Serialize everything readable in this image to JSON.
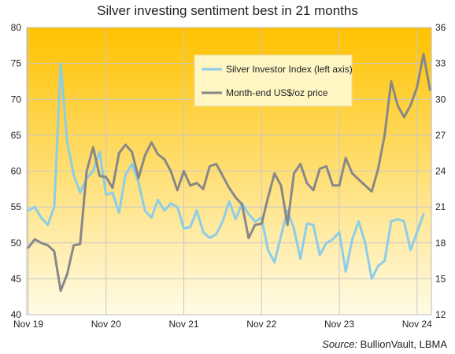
{
  "chart_data": {
    "type": "line",
    "title": "Silver investing sentiment best in 21 months",
    "source_label": "Source:",
    "source_text": "BullionVault, LBMA",
    "x_tick_labels": [
      "Nov 19",
      "Nov 20",
      "Nov 21",
      "Nov 22",
      "Nov 23",
      "Nov 24"
    ],
    "y_left": {
      "ticks": [
        40,
        45,
        50,
        55,
        60,
        65,
        70,
        75,
        80
      ],
      "lim": [
        40,
        80
      ]
    },
    "y_right": {
      "ticks": [
        12,
        15,
        18,
        21,
        24,
        27,
        30,
        33,
        36
      ],
      "lim": [
        12,
        36
      ]
    },
    "grid": true,
    "legend_position": "top-right",
    "background_gradient": {
      "top": "#ffc200",
      "bottom": "#fffbe6"
    },
    "series": [
      {
        "name": "Silver Investor Index (left axis)",
        "axis": "left",
        "color": "#8ccde8",
        "values": [
          54.5,
          55,
          53.5,
          52.5,
          55,
          75,
          64,
          59.5,
          57,
          59,
          60,
          62.7,
          56.7,
          57,
          54.2,
          59.5,
          61,
          58.5,
          54.5,
          53.5,
          56,
          54.5,
          55.5,
          55,
          52,
          52.2,
          54.5,
          51.5,
          50.7,
          51.2,
          53,
          55.8,
          53.3,
          55.5,
          54,
          53,
          53.5,
          49,
          47.3,
          51,
          54.5,
          52,
          47.8,
          52.7,
          52.5,
          48.3,
          50,
          50.5,
          51.5,
          46,
          50.5,
          53,
          50,
          45,
          46.8,
          47.5,
          53,
          53.3,
          53,
          49,
          51.5,
          54
        ]
      },
      {
        "name": "Month-end US$/oz price",
        "axis": "right",
        "color": "#888888",
        "values": [
          17.6,
          18.3,
          18.0,
          17.8,
          17.3,
          14.0,
          15.4,
          17.8,
          17.9,
          24.0,
          26.0,
          23.6,
          23.5,
          22.6,
          25.5,
          26.2,
          25.6,
          23.4,
          25.3,
          26.4,
          25.4,
          25.0,
          24.0,
          22.4,
          24.0,
          22.8,
          23.0,
          22.5,
          24.4,
          24.6,
          23.6,
          22.6,
          21.8,
          21.2,
          18.4,
          19.5,
          19.6,
          21.8,
          23.8,
          22.8,
          19.5,
          23.8,
          24.6,
          23.0,
          22.4,
          24.2,
          24.4,
          22.8,
          22.8,
          25.1,
          23.8,
          23.3,
          22.8,
          22.3,
          24.2,
          27.0,
          31.5,
          29.5,
          28.5,
          29.5,
          31.0,
          33.8,
          30.8
        ]
      }
    ]
  }
}
